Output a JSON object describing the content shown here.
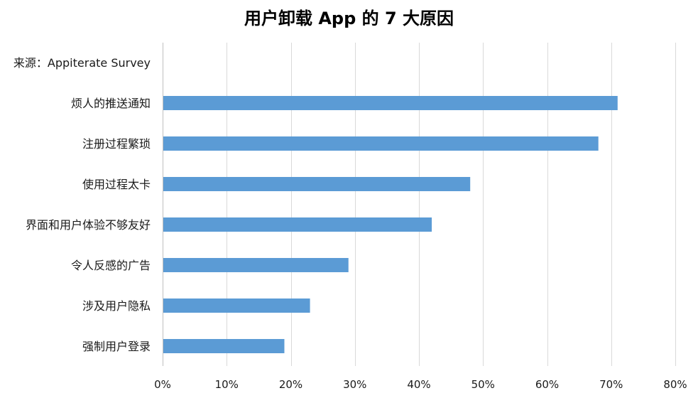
{
  "chart_data": {
    "type": "bar",
    "orientation": "horizontal",
    "title": "用户卸载 App 的 7 大原因",
    "categories": [
      "来源：Appiterate Survey",
      "烦人的推送通知",
      "注册过程繁琐",
      "使用过程太卡",
      "界面和用户体验不够友好",
      "令人反感的广告",
      "涉及用户隐私",
      "强制用户登录"
    ],
    "values": [
      null,
      71,
      68,
      48,
      42,
      29,
      23,
      19
    ],
    "xlabel": "",
    "ylabel": "",
    "xlim": [
      0,
      80
    ],
    "x_ticks": [
      0,
      10,
      20,
      30,
      40,
      50,
      60,
      70,
      80
    ],
    "tick_labels": [
      "0%",
      "10%",
      "20%",
      "30%",
      "40%",
      "50%",
      "60%",
      "70%",
      "80%"
    ],
    "grid": true,
    "legend": "none",
    "bar_color": "#5b9bd5"
  }
}
